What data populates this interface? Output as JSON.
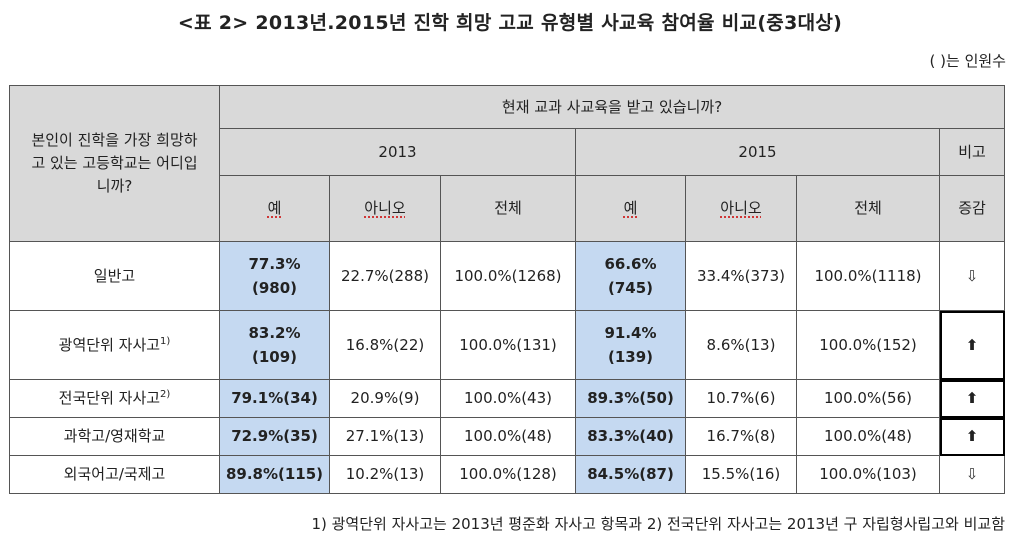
{
  "title": "<표 2> 2013년.2015년 진학 희망 고교 유형별 사교육 참여율 비교(중3대상)",
  "unit_note": "( )는 인원수",
  "header": {
    "row_question": "본인이 진학을 가장 희망하고 있는 고등학교는 어디입니까?",
    "col_question": "현재  교과 사교육을 받고 있습니까?",
    "year_2013": "2013",
    "year_2015": "2015",
    "remark": "비고",
    "yes": "예",
    "no": "아니오",
    "total": "전체",
    "change": "증감"
  },
  "rows": [
    {
      "name": "일반고",
      "sup": "",
      "y13": "77.3%(980)",
      "n13": "22.7%(288)",
      "t13": "100.0%(1268)",
      "y15": "66.6%(745)",
      "n15": "33.4%(373)",
      "t15": "100.0%(1118)",
      "change": "⇩"
    },
    {
      "name": "광역단위 자사고",
      "sup": "1)",
      "y13": "83.2%(109)",
      "n13": "16.8%(22)",
      "t13": "100.0%(131)",
      "y15": "91.4%(139)",
      "n15": "8.6%(13)",
      "t15": "100.0%(152)",
      "change": "⬆"
    },
    {
      "name": "전국단위 자사고",
      "sup": "2)",
      "y13": "79.1%(34)",
      "n13": "20.9%(9)",
      "t13": "100.0%(43)",
      "y15": "89.3%(50)",
      "n15": "10.7%(6)",
      "t15": "100.0%(56)",
      "change": "⬆"
    },
    {
      "name": "과학고/영재학교",
      "sup": "",
      "y13": "72.9%(35)",
      "n13": "27.1%(13)",
      "t13": "100.0%(48)",
      "y15": "83.3%(40)",
      "n15": "16.7%(8)",
      "t15": "100.0%(48)",
      "change": "⬆"
    },
    {
      "name": "외국어고/국제고",
      "sup": "",
      "y13": "89.8%(115)",
      "n13": "10.2%(13)",
      "t13": "100.0%(128)",
      "y15": "84.5%(87)",
      "n15": "15.5%(16)",
      "t15": "100.0%(103)",
      "change": "⇩"
    }
  ],
  "footnote": "1) 광역단위 자사고는 2013년 평준화 자사고 항목과 2) 전국단위 자사고는 2013년 구 자립형사립고와 비교함"
}
